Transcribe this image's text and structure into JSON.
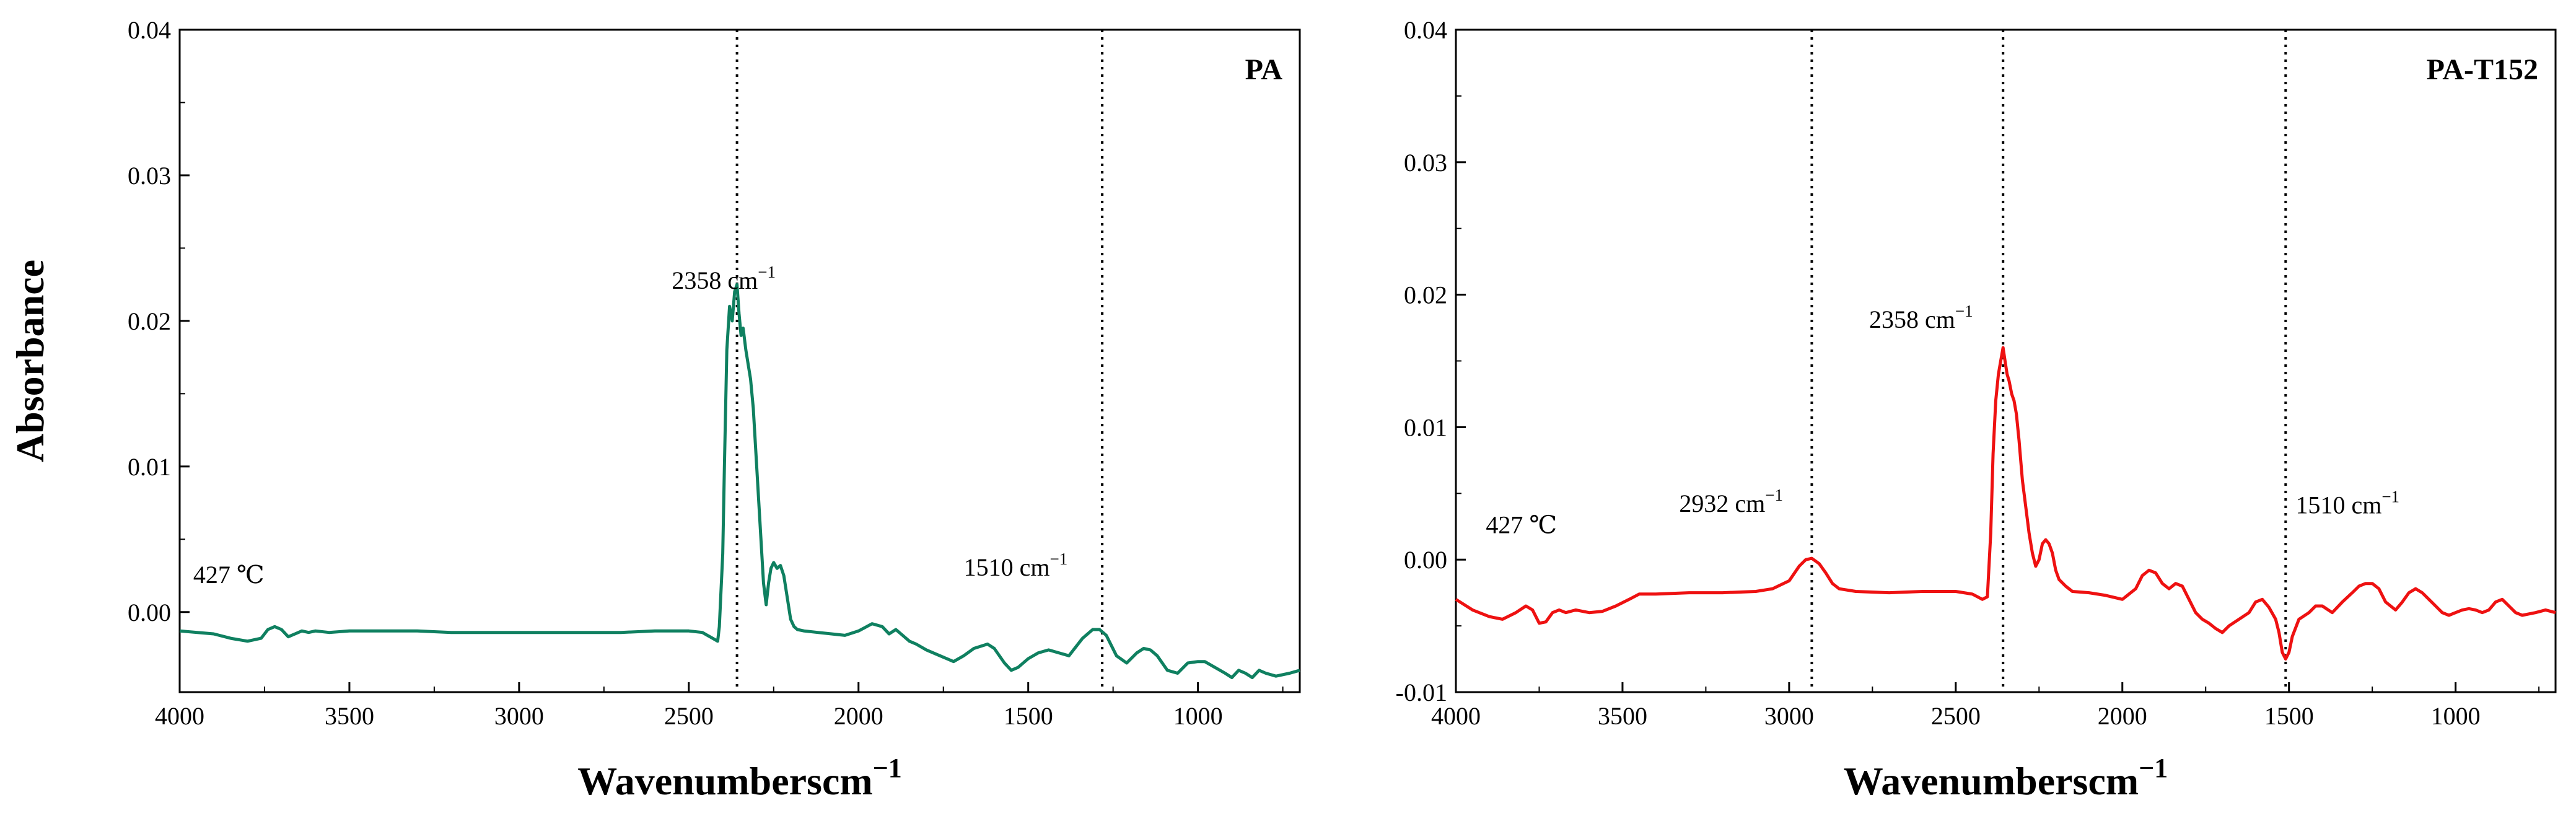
{
  "chart_data": [
    {
      "type": "line",
      "panel_label": "PA",
      "xlabel": "Wavenumberscm",
      "xlabel_sup": "−1",
      "ylabel": "Absorbance",
      "xlim": [
        4000,
        700
      ],
      "ylim": [
        -0.0055,
        0.04
      ],
      "x_reversed": true,
      "xticks": [
        {
          "value": 4000,
          "label": "4000"
        },
        {
          "value": 3500,
          "label": "3500"
        },
        {
          "value": 3000,
          "label": "3000"
        },
        {
          "value": 2500,
          "label": "2500"
        },
        {
          "value": 2000,
          "label": "2000"
        },
        {
          "value": 1500,
          "label": "1500"
        },
        {
          "value": 1000,
          "label": "1000"
        }
      ],
      "yticks": [
        {
          "value": 0.0,
          "label": "0.00"
        },
        {
          "value": 0.01,
          "label": "0.01"
        },
        {
          "value": 0.02,
          "label": "0.02"
        },
        {
          "value": 0.03,
          "label": "0.03"
        },
        {
          "value": 0.04,
          "label": "0.04"
        }
      ],
      "vlines": [
        2358,
        1282
      ],
      "annotations": [
        {
          "text": "2358 cm",
          "sup": "−1",
          "x": 2550,
          "y": 0.0222,
          "anchor": "start"
        },
        {
          "text": "1510 cm",
          "sup": "−1",
          "x": 1690,
          "y": 0.0025,
          "anchor": "start"
        },
        {
          "text": "427 ℃",
          "sup": "",
          "x": 3960,
          "y": 0.002,
          "anchor": "start"
        }
      ],
      "series": [
        {
          "name": "PA",
          "color": "#0f8060",
          "x": [
            4000,
            3900,
            3850,
            3800,
            3760,
            3740,
            3720,
            3700,
            3680,
            3660,
            3640,
            3620,
            3600,
            3560,
            3500,
            3400,
            3300,
            3200,
            3100,
            3000,
            2900,
            2800,
            2700,
            2600,
            2500,
            2460,
            2430,
            2415,
            2410,
            2400,
            2395,
            2388,
            2380,
            2372,
            2365,
            2358,
            2352,
            2346,
            2340,
            2332,
            2325,
            2318,
            2310,
            2300,
            2290,
            2280,
            2272,
            2265,
            2258,
            2250,
            2240,
            2230,
            2220,
            2210,
            2200,
            2190,
            2180,
            2160,
            2120,
            2080,
            2040,
            2000,
            1960,
            1930,
            1910,
            1890,
            1870,
            1850,
            1830,
            1800,
            1760,
            1720,
            1690,
            1660,
            1620,
            1600,
            1570,
            1550,
            1530,
            1500,
            1470,
            1440,
            1410,
            1380,
            1340,
            1310,
            1290,
            1270,
            1240,
            1210,
            1180,
            1160,
            1140,
            1120,
            1090,
            1060,
            1030,
            1000,
            980,
            950,
            920,
            900,
            880,
            860,
            840,
            820,
            800,
            770,
            730,
            700
          ],
          "y": [
            -0.0013,
            -0.0015,
            -0.0018,
            -0.002,
            -0.0018,
            -0.0012,
            -0.001,
            -0.0012,
            -0.0017,
            -0.0015,
            -0.0013,
            -0.0014,
            -0.0013,
            -0.0014,
            -0.0013,
            -0.0013,
            -0.0013,
            -0.0014,
            -0.0014,
            -0.0014,
            -0.0014,
            -0.0014,
            -0.0014,
            -0.0013,
            -0.0013,
            -0.0014,
            -0.0018,
            -0.002,
            -0.001,
            0.004,
            0.01,
            0.018,
            0.021,
            0.02,
            0.022,
            0.0225,
            0.0205,
            0.019,
            0.0195,
            0.018,
            0.017,
            0.016,
            0.014,
            0.01,
            0.006,
            0.002,
            0.0005,
            0.002,
            0.003,
            0.0034,
            0.003,
            0.0032,
            0.0025,
            0.001,
            -0.0005,
            -0.001,
            -0.0012,
            -0.0013,
            -0.0014,
            -0.0015,
            -0.0016,
            -0.0013,
            -0.0008,
            -0.001,
            -0.0015,
            -0.0012,
            -0.0016,
            -0.002,
            -0.0022,
            -0.0026,
            -0.003,
            -0.0034,
            -0.003,
            -0.0025,
            -0.0022,
            -0.0025,
            -0.0035,
            -0.004,
            -0.0038,
            -0.0032,
            -0.0028,
            -0.0026,
            -0.0028,
            -0.003,
            -0.0018,
            -0.0012,
            -0.0012,
            -0.0016,
            -0.003,
            -0.0035,
            -0.0028,
            -0.0025,
            -0.0026,
            -0.003,
            -0.004,
            -0.0042,
            -0.0035,
            -0.0034,
            -0.0034,
            -0.0038,
            -0.0042,
            -0.0045,
            -0.004,
            -0.0042,
            -0.0045,
            -0.004,
            -0.0042,
            -0.0044,
            -0.0042,
            -0.004
          ]
        }
      ]
    },
    {
      "type": "line",
      "panel_label": "PA-T152",
      "xlabel": "Wavenumberscm",
      "xlabel_sup": "−1",
      "ylabel": "",
      "xlim": [
        4000,
        700
      ],
      "ylim": [
        -0.01,
        0.04
      ],
      "x_reversed": true,
      "xticks": [
        {
          "value": 4000,
          "label": "4000"
        },
        {
          "value": 3500,
          "label": "3500"
        },
        {
          "value": 3000,
          "label": "3000"
        },
        {
          "value": 2500,
          "label": "2500"
        },
        {
          "value": 2000,
          "label": "2000"
        },
        {
          "value": 1500,
          "label": "1500"
        },
        {
          "value": 1000,
          "label": "1000"
        }
      ],
      "yticks": [
        {
          "value": -0.01,
          "label": "-0.01"
        },
        {
          "value": 0.0,
          "label": "0.00"
        },
        {
          "value": 0.01,
          "label": "0.01"
        },
        {
          "value": 0.02,
          "label": "0.02"
        },
        {
          "value": 0.03,
          "label": "0.03"
        },
        {
          "value": 0.04,
          "label": "0.04"
        }
      ],
      "vlines": [
        2932,
        2358,
        1510
      ],
      "annotations": [
        {
          "text": "427 ℃",
          "sup": "",
          "x": 3910,
          "y": 0.002,
          "anchor": "start"
        },
        {
          "text": "2932 cm",
          "sup": "−1",
          "x": 3330,
          "y": 0.0036,
          "anchor": "start"
        },
        {
          "text": "2358 cm",
          "sup": "−1",
          "x": 2760,
          "y": 0.0175,
          "anchor": "start"
        },
        {
          "text": "1510 cm",
          "sup": "−1",
          "x": 1480,
          "y": 0.0035,
          "anchor": "start"
        }
      ],
      "series": [
        {
          "name": "PA-T152",
          "color": "#ee1111",
          "x": [
            4000,
            3950,
            3900,
            3860,
            3820,
            3790,
            3770,
            3750,
            3730,
            3710,
            3690,
            3670,
            3640,
            3600,
            3560,
            3520,
            3480,
            3450,
            3400,
            3300,
            3200,
            3100,
            3050,
            3000,
            2970,
            2950,
            2932,
            2910,
            2890,
            2870,
            2850,
            2800,
            2700,
            2600,
            2500,
            2450,
            2420,
            2405,
            2395,
            2388,
            2380,
            2372,
            2365,
            2358,
            2352,
            2346,
            2340,
            2332,
            2325,
            2318,
            2310,
            2300,
            2290,
            2280,
            2270,
            2260,
            2250,
            2240,
            2230,
            2220,
            2210,
            2200,
            2190,
            2170,
            2150,
            2100,
            2050,
            2000,
            1960,
            1940,
            1920,
            1900,
            1880,
            1860,
            1840,
            1820,
            1800,
            1780,
            1760,
            1740,
            1720,
            1700,
            1680,
            1650,
            1620,
            1600,
            1580,
            1560,
            1540,
            1530,
            1520,
            1510,
            1500,
            1490,
            1470,
            1440,
            1420,
            1400,
            1370,
            1340,
            1310,
            1290,
            1270,
            1250,
            1230,
            1210,
            1180,
            1160,
            1140,
            1120,
            1100,
            1080,
            1060,
            1040,
            1020,
            1000,
            980,
            960,
            940,
            920,
            900,
            880,
            860,
            840,
            820,
            800,
            760,
            730,
            700
          ],
          "y": [
            -0.003,
            -0.0038,
            -0.0043,
            -0.0045,
            -0.004,
            -0.0035,
            -0.0038,
            -0.0048,
            -0.0047,
            -0.004,
            -0.0038,
            -0.004,
            -0.0038,
            -0.004,
            -0.0039,
            -0.0035,
            -0.003,
            -0.0026,
            -0.0026,
            -0.0025,
            -0.0025,
            -0.0024,
            -0.0022,
            -0.0016,
            -0.0005,
            0.0,
            0.0001,
            -0.0003,
            -0.001,
            -0.0018,
            -0.0022,
            -0.0024,
            -0.0025,
            -0.0024,
            -0.0024,
            -0.0026,
            -0.003,
            -0.0028,
            0.002,
            0.008,
            0.012,
            0.014,
            0.015,
            0.016,
            0.015,
            0.014,
            0.0135,
            0.0125,
            0.012,
            0.011,
            0.009,
            0.006,
            0.004,
            0.002,
            0.0005,
            -0.0005,
            0.0,
            0.0012,
            0.0015,
            0.0012,
            0.0005,
            -0.0008,
            -0.0015,
            -0.002,
            -0.0024,
            -0.0025,
            -0.0027,
            -0.003,
            -0.0022,
            -0.0012,
            -0.0008,
            -0.001,
            -0.0018,
            -0.0022,
            -0.0018,
            -0.002,
            -0.003,
            -0.004,
            -0.0045,
            -0.0048,
            -0.0052,
            -0.0055,
            -0.005,
            -0.0045,
            -0.004,
            -0.0032,
            -0.003,
            -0.0036,
            -0.0045,
            -0.0055,
            -0.007,
            -0.0075,
            -0.007,
            -0.0058,
            -0.0045,
            -0.004,
            -0.0035,
            -0.0035,
            -0.004,
            -0.0032,
            -0.0025,
            -0.002,
            -0.0018,
            -0.0018,
            -0.0022,
            -0.0032,
            -0.0038,
            -0.0032,
            -0.0025,
            -0.0022,
            -0.0025,
            -0.003,
            -0.0035,
            -0.004,
            -0.0042,
            -0.004,
            -0.0038,
            -0.0037,
            -0.0038,
            -0.004,
            -0.0038,
            -0.0032,
            -0.003,
            -0.0035,
            -0.004,
            -0.0042,
            -0.004,
            -0.0038,
            -0.004
          ]
        }
      ]
    }
  ]
}
